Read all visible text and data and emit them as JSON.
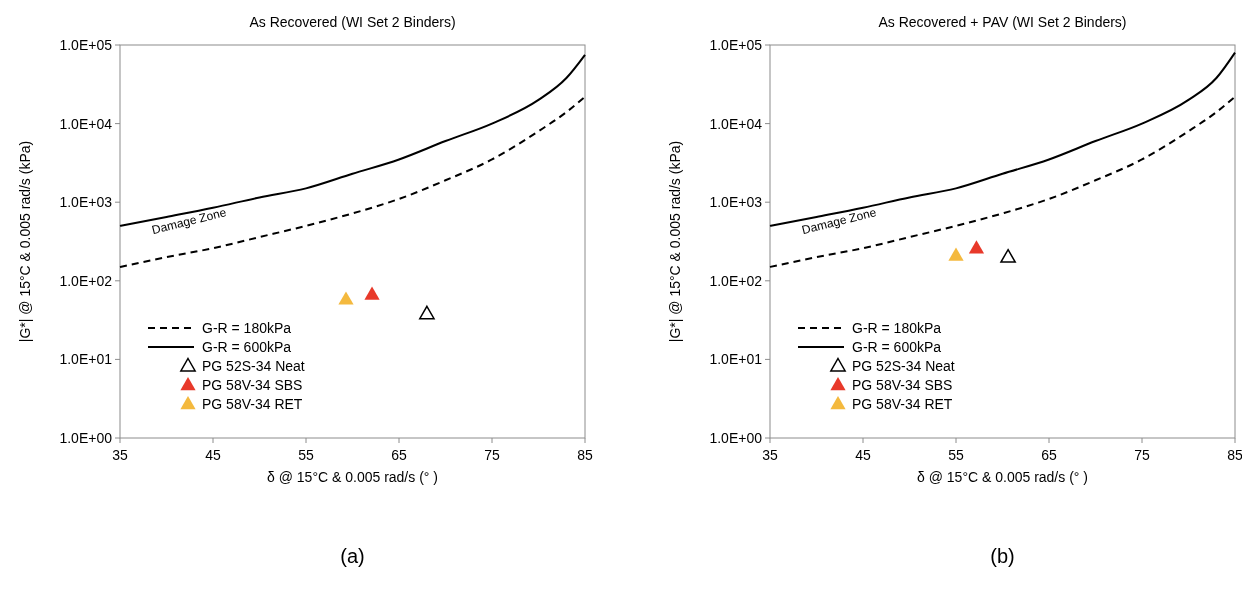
{
  "chart_data": [
    {
      "type": "scatter",
      "title": "As Recovered (WI Set 2 Binders)",
      "xlabel": "δ @ 15°C & 0.005 rad/s (° )",
      "ylabel": "|G*| @ 15°C & 0.005 rad/s (kPa)",
      "log": "y",
      "xlim": [
        35,
        85
      ],
      "xticks": [
        35,
        45,
        55,
        65,
        75,
        85
      ],
      "ylim": [
        1,
        100000
      ],
      "yticks": [
        {
          "value": 1,
          "label": "1.0E+00"
        },
        {
          "value": 10,
          "label": "1.0E+01"
        },
        {
          "value": 100,
          "label": "1.0E+02"
        },
        {
          "value": 1000,
          "label": "1.0E+03"
        },
        {
          "value": 10000,
          "label": "1.0E+04"
        },
        {
          "value": 100000,
          "label": "1.0E+05"
        }
      ],
      "grid": false,
      "legend": "bottom left",
      "marker": "triangle",
      "annotations": [
        "Damage Zone",
        "(a)"
      ],
      "series": [
        {
          "name": "G-R = 180kPa",
          "type": "line",
          "marker": "none",
          "line_style": "dashed",
          "color": "#000000",
          "x": [
            35,
            40,
            45,
            50,
            55,
            60,
            65,
            70,
            75,
            80,
            83,
            85
          ],
          "values": [
            150,
            200,
            260,
            360,
            500,
            720,
            1100,
            1900,
            3500,
            8000,
            14000,
            22000
          ]
        },
        {
          "name": "G-R = 600kPa",
          "type": "line",
          "marker": "none",
          "line_style": "solid",
          "color": "#000000",
          "x": [
            35,
            40,
            45,
            50,
            55,
            60,
            65,
            70,
            75,
            80,
            83,
            85
          ],
          "values": [
            500,
            650,
            850,
            1150,
            1500,
            2300,
            3500,
            6000,
            10000,
            20000,
            38000,
            75000
          ]
        },
        {
          "name": "PG 52S-34 Neat",
          "color": "#000000",
          "marker": "triangle-open",
          "x": [
            68
          ],
          "values": [
            38
          ]
        },
        {
          "name": "PG 58V-34 SBS",
          "color": "#e8392a",
          "x": [
            62.1
          ],
          "values": [
            67
          ]
        },
        {
          "name": "PG 58V-34 RET",
          "color": "#f4b93e",
          "x": [
            59.3
          ],
          "values": [
            58
          ]
        }
      ]
    },
    {
      "type": "scatter",
      "title": "As Recovered + PAV (WI Set 2 Binders)",
      "xlabel": "δ @ 15°C & 0.005 rad/s (° )",
      "ylabel": "|G*| @ 15°C & 0.005 rad/s (kPa)",
      "log": "y",
      "xlim": [
        35,
        85
      ],
      "xticks": [
        35,
        45,
        55,
        65,
        75,
        85
      ],
      "ylim": [
        1,
        100000
      ],
      "yticks": [
        {
          "value": 1,
          "label": "1.0E+00"
        },
        {
          "value": 10,
          "label": "1.0E+01"
        },
        {
          "value": 100,
          "label": "1.0E+02"
        },
        {
          "value": 1000,
          "label": "1.0E+03"
        },
        {
          "value": 10000,
          "label": "1.0E+04"
        },
        {
          "value": 100000,
          "label": "1.0E+05"
        }
      ],
      "grid": false,
      "legend": "bottom left",
      "marker": "triangle",
      "annotations": [
        "Damage Zone",
        "(b)"
      ],
      "series": [
        {
          "name": "G-R = 180kPa",
          "type": "line",
          "marker": "none",
          "line_style": "dashed",
          "color": "#000000",
          "x": [
            35,
            40,
            45,
            50,
            55,
            60,
            65,
            70,
            75,
            80,
            83,
            85
          ],
          "values": [
            150,
            200,
            260,
            360,
            500,
            720,
            1100,
            1900,
            3500,
            8000,
            14000,
            22000
          ]
        },
        {
          "name": "G-R = 600kPa",
          "type": "line",
          "marker": "none",
          "line_style": "solid",
          "color": "#000000",
          "x": [
            35,
            40,
            45,
            50,
            55,
            60,
            65,
            70,
            75,
            80,
            83,
            85
          ],
          "values": [
            500,
            650,
            850,
            1150,
            1500,
            2300,
            3500,
            6000,
            10000,
            20000,
            38000,
            80000
          ]
        },
        {
          "name": "PG 52S-34 Neat",
          "color": "#000000",
          "marker": "triangle-open",
          "x": [
            60.6
          ],
          "values": [
            200
          ]
        },
        {
          "name": "PG 58V-34 SBS",
          "color": "#e8392a",
          "x": [
            57.2
          ],
          "values": [
            260
          ]
        },
        {
          "name": "PG 58V-34 RET",
          "color": "#f4b93e",
          "x": [
            55
          ],
          "values": [
            210
          ]
        }
      ]
    }
  ]
}
